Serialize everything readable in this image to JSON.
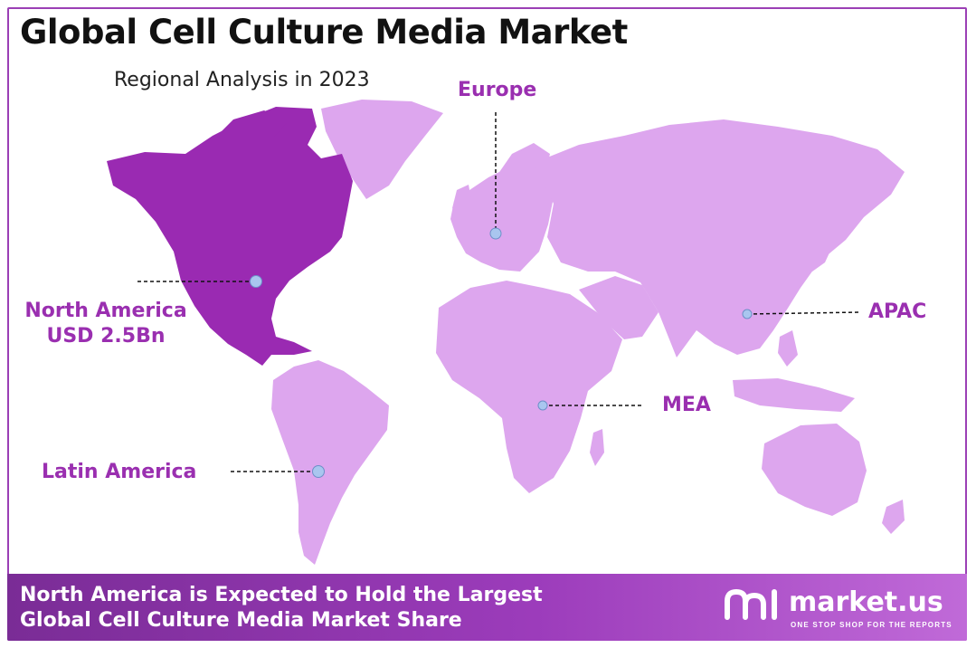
{
  "header": {
    "title": "Global Cell Culture Media Market",
    "subtitle": "Regional Analysis in 2023"
  },
  "regions": {
    "europe": "Europe",
    "north_america": "North America",
    "north_america_value": "USD 2.5Bn",
    "apac": "APAC",
    "mea": "MEA",
    "latin_america": "Latin America"
  },
  "footer": {
    "line1": "North America is Expected to Hold the Largest",
    "line2": "Global Cell Culture Media Market Share"
  },
  "brand": {
    "name": "market.us",
    "tagline": "ONE STOP SHOP FOR THE REPORTS"
  },
  "colors": {
    "highlight_region": "#9a2ab2",
    "other_regions": "#dda6ee",
    "accent": "#9b3fb5",
    "marker": "#a9c6ef"
  }
}
